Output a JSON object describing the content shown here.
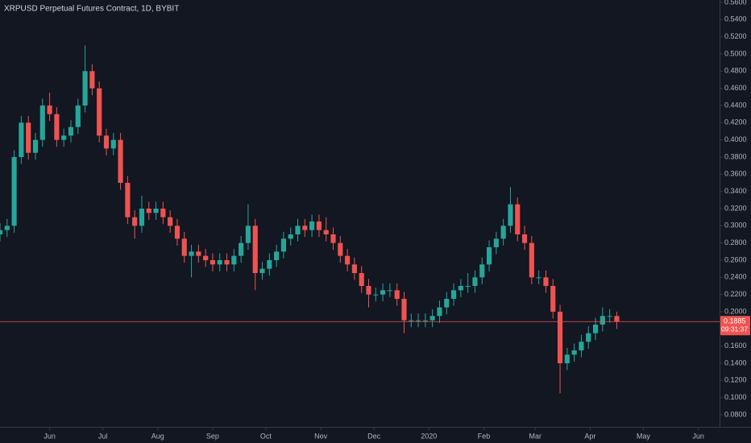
{
  "chart_data": {
    "type": "candlestick",
    "title": "XRPUSD Perpetual Futures Contract, 1D, BYBIT",
    "up_color": "#26a69a",
    "down_color": "#ef5350",
    "x": [
      -28,
      -24,
      -20,
      -16,
      -12,
      -8,
      -4,
      0,
      4,
      8,
      12,
      16,
      20,
      24,
      28,
      32,
      36,
      40,
      44,
      48,
      52,
      56,
      60,
      64,
      68,
      72,
      76,
      80,
      84,
      88,
      92,
      96,
      100,
      104,
      108,
      112,
      116,
      120,
      124,
      128,
      132,
      136,
      140,
      144,
      148,
      152,
      156,
      160,
      164,
      168,
      172,
      176,
      180,
      184,
      188,
      192,
      196,
      200,
      204,
      208,
      212,
      216,
      220,
      224,
      228,
      232,
      236,
      240,
      244,
      248,
      252,
      256,
      260,
      264,
      268,
      272,
      276,
      280,
      284,
      288,
      292,
      296,
      300,
      304,
      308,
      312,
      316,
      320
    ],
    "open": [
      0.29,
      0.295,
      0.3,
      0.38,
      0.42,
      0.385,
      0.4,
      0.44,
      0.43,
      0.4,
      0.405,
      0.415,
      0.44,
      0.48,
      0.46,
      0.405,
      0.39,
      0.4,
      0.35,
      0.31,
      0.3,
      0.32,
      0.315,
      0.32,
      0.31,
      0.3,
      0.285,
      0.265,
      0.27,
      0.265,
      0.26,
      0.255,
      0.26,
      0.255,
      0.265,
      0.28,
      0.3,
      0.245,
      0.25,
      0.26,
      0.27,
      0.285,
      0.29,
      0.3,
      0.295,
      0.305,
      0.295,
      0.29,
      0.28,
      0.265,
      0.255,
      0.245,
      0.23,
      0.22,
      0.22,
      0.225,
      0.225,
      0.215,
      0.19,
      0.19,
      0.19,
      0.19,
      0.195,
      0.205,
      0.215,
      0.225,
      0.23,
      0.23,
      0.24,
      0.255,
      0.275,
      0.285,
      0.3,
      0.325,
      0.29,
      0.28,
      0.24,
      0.24,
      0.23,
      0.2,
      0.14,
      0.15,
      0.155,
      0.165,
      0.175,
      0.185,
      0.195,
      0.195
    ],
    "high": [
      0.303,
      0.308,
      0.388,
      0.428,
      0.428,
      0.408,
      0.448,
      0.455,
      0.438,
      0.413,
      0.423,
      0.448,
      0.51,
      0.488,
      0.468,
      0.413,
      0.408,
      0.408,
      0.358,
      0.318,
      0.335,
      0.328,
      0.328,
      0.328,
      0.318,
      0.308,
      0.293,
      0.278,
      0.278,
      0.273,
      0.268,
      0.268,
      0.268,
      0.273,
      0.288,
      0.325,
      0.308,
      0.258,
      0.268,
      0.278,
      0.293,
      0.298,
      0.308,
      0.308,
      0.313,
      0.313,
      0.31,
      0.298,
      0.288,
      0.273,
      0.263,
      0.253,
      0.238,
      0.228,
      0.233,
      0.233,
      0.233,
      0.223,
      0.198,
      0.198,
      0.198,
      0.203,
      0.213,
      0.223,
      0.233,
      0.238,
      0.245,
      0.248,
      0.263,
      0.283,
      0.293,
      0.308,
      0.345,
      0.333,
      0.3,
      0.288,
      0.248,
      0.248,
      0.238,
      0.208,
      0.158,
      0.163,
      0.173,
      0.183,
      0.193,
      0.205,
      0.203,
      0.2
    ],
    "low": [
      0.282,
      0.287,
      0.292,
      0.372,
      0.377,
      0.377,
      0.392,
      0.422,
      0.392,
      0.392,
      0.397,
      0.407,
      0.432,
      0.452,
      0.397,
      0.382,
      0.382,
      0.342,
      0.302,
      0.285,
      0.292,
      0.307,
      0.307,
      0.302,
      0.292,
      0.277,
      0.257,
      0.24,
      0.257,
      0.252,
      0.247,
      0.247,
      0.247,
      0.247,
      0.257,
      0.272,
      0.225,
      0.237,
      0.242,
      0.252,
      0.262,
      0.277,
      0.282,
      0.287,
      0.287,
      0.287,
      0.282,
      0.272,
      0.257,
      0.247,
      0.237,
      0.222,
      0.205,
      0.212,
      0.212,
      0.217,
      0.207,
      0.175,
      0.182,
      0.182,
      0.182,
      0.182,
      0.187,
      0.197,
      0.207,
      0.217,
      0.222,
      0.222,
      0.232,
      0.247,
      0.267,
      0.277,
      0.292,
      0.282,
      0.272,
      0.232,
      0.232,
      0.222,
      0.192,
      0.105,
      0.132,
      0.142,
      0.147,
      0.157,
      0.167,
      0.177,
      0.187,
      0.18
    ],
    "close": [
      0.295,
      0.3,
      0.38,
      0.42,
      0.385,
      0.4,
      0.44,
      0.43,
      0.4,
      0.405,
      0.415,
      0.44,
      0.48,
      0.46,
      0.405,
      0.39,
      0.4,
      0.35,
      0.31,
      0.3,
      0.32,
      0.315,
      0.32,
      0.31,
      0.3,
      0.285,
      0.265,
      0.27,
      0.265,
      0.26,
      0.255,
      0.26,
      0.255,
      0.265,
      0.28,
      0.3,
      0.245,
      0.25,
      0.26,
      0.27,
      0.285,
      0.29,
      0.3,
      0.295,
      0.305,
      0.295,
      0.29,
      0.28,
      0.265,
      0.255,
      0.245,
      0.23,
      0.22,
      0.22,
      0.225,
      0.225,
      0.215,
      0.19,
      0.19,
      0.19,
      0.19,
      0.195,
      0.205,
      0.215,
      0.225,
      0.23,
      0.23,
      0.24,
      0.255,
      0.275,
      0.285,
      0.3,
      0.325,
      0.29,
      0.28,
      0.24,
      0.24,
      0.23,
      0.2,
      0.14,
      0.15,
      0.155,
      0.165,
      0.175,
      0.185,
      0.195,
      0.195,
      0.1885
    ],
    "xlim": [
      -28,
      378
    ],
    "xticks": [
      {
        "value": 0,
        "label": "Jun"
      },
      {
        "value": 30,
        "label": "Jul"
      },
      {
        "value": 61,
        "label": "Aug"
      },
      {
        "value": 92,
        "label": "Sep"
      },
      {
        "value": 122,
        "label": "Oct"
      },
      {
        "value": 153,
        "label": "Nov"
      },
      {
        "value": 183,
        "label": "Dec"
      },
      {
        "value": 214,
        "label": "2020"
      },
      {
        "value": 245,
        "label": "Feb"
      },
      {
        "value": 274,
        "label": "Mar"
      },
      {
        "value": 305,
        "label": "Apr"
      },
      {
        "value": 335,
        "label": "May"
      },
      {
        "value": 366,
        "label": "Jun"
      }
    ],
    "ylim": [
      0.08,
      0.56
    ],
    "yticks": [
      {
        "value": 0.08,
        "label": "0.0800"
      },
      {
        "value": 0.1,
        "label": "0.1000"
      },
      {
        "value": 0.12,
        "label": "0.1200"
      },
      {
        "value": 0.14,
        "label": "0.1400"
      },
      {
        "value": 0.16,
        "label": "0.1600"
      },
      {
        "value": 0.18,
        "label": "0.1800"
      },
      {
        "value": 0.2,
        "label": "0.2000"
      },
      {
        "value": 0.22,
        "label": "0.2200"
      },
      {
        "value": 0.24,
        "label": "0.2400"
      },
      {
        "value": 0.26,
        "label": "0.2600"
      },
      {
        "value": 0.28,
        "label": "0.2800"
      },
      {
        "value": 0.3,
        "label": "0.3000"
      },
      {
        "value": 0.32,
        "label": "0.3200"
      },
      {
        "value": 0.34,
        "label": "0.3400"
      },
      {
        "value": 0.36,
        "label": "0.3600"
      },
      {
        "value": 0.38,
        "label": "0.3800"
      },
      {
        "value": 0.4,
        "label": "0.4000"
      },
      {
        "value": 0.42,
        "label": "0.4200"
      },
      {
        "value": 0.44,
        "label": "0.4400"
      },
      {
        "value": 0.46,
        "label": "0.4600"
      },
      {
        "value": 0.48,
        "label": "0.4800"
      },
      {
        "value": 0.5,
        "label": "0.5000"
      },
      {
        "value": 0.52,
        "label": "0.5200"
      },
      {
        "value": 0.54,
        "label": "0.5400"
      },
      {
        "value": 0.56,
        "label": "0.5600"
      }
    ],
    "last_price": {
      "value": 0.1885,
      "label": "0.1885"
    },
    "countdown": "09:31:37"
  }
}
